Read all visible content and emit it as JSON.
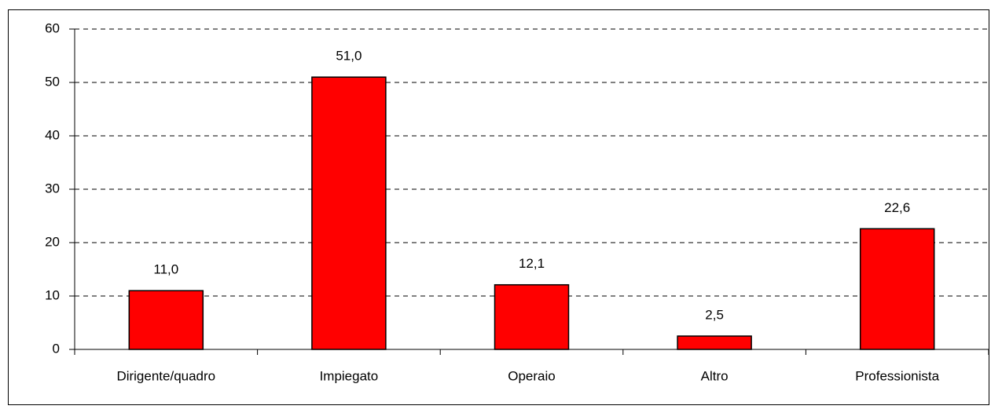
{
  "chart_data": {
    "type": "bar",
    "categories": [
      "Dirigente/quadro",
      "Impiegato",
      "Operaio",
      "Altro",
      "Professionista"
    ],
    "values": [
      11.0,
      51.0,
      12.1,
      2.5,
      22.6
    ],
    "value_labels": [
      "11,0",
      "51,0",
      "12,1",
      "2,5",
      "22,6"
    ],
    "color": "#ff0000",
    "ylim": [
      0,
      60
    ],
    "yticks": [
      0,
      10,
      20,
      30,
      40,
      50,
      60
    ],
    "grid": true
  }
}
